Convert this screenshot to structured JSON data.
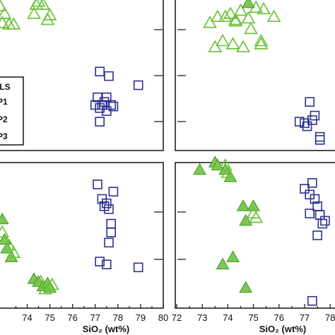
{
  "colors": {
    "triangle_hollow": "#6cc33a",
    "triangle_fill": "#7dc855",
    "square": "#2e3192",
    "axis": "#222222"
  },
  "legend": {
    "title": "OLS",
    "entries": [
      "P1",
      "P2",
      "P3"
    ]
  },
  "chart_data": [
    {
      "type": "scatter",
      "panel": "top-left",
      "xlim": [
        72.8,
        80
      ],
      "series": [
        {
          "marker": "hollow-triangle",
          "x": [
            72.8,
            72.9,
            73.0,
            73.2,
            73.4,
            74.3,
            74.4,
            74.5,
            74.7,
            74.9,
            75.0
          ],
          "y": [
            0.95,
            0.84,
            0.9,
            0.83,
            0.83,
            0.9,
            0.96,
            0.98,
            0.96,
            0.86,
            0.89
          ]
        },
        {
          "marker": "hollow-square",
          "x": [
            77.2,
            77.1,
            77.0,
            77.2,
            77.5,
            77.4,
            77.6,
            77.7,
            77.8,
            77.3,
            77.2,
            77.5,
            78.9
          ],
          "y": [
            0.52,
            0.35,
            0.3,
            0.28,
            0.35,
            0.32,
            0.49,
            0.3,
            0.29,
            0.3,
            0.19,
            0.26,
            0.43
          ]
        }
      ],
      "yticks": 3
    },
    {
      "type": "scatter",
      "panel": "top-right",
      "xlim": [
        72,
        78.3
      ],
      "series": [
        {
          "marker": "hollow-triangle",
          "x": [
            73.3,
            73.5,
            73.6,
            73.9,
            74.2,
            74.3,
            74.1,
            74.5,
            74.8,
            74.9,
            73.8,
            74.3,
            74.6,
            75.3,
            75.1,
            75.8,
            75.4,
            75.3
          ],
          "y": [
            0.84,
            0.68,
            0.88,
            0.88,
            0.7,
            0.86,
            0.9,
            0.92,
            0.87,
            0.8,
            0.72,
            0.85,
            0.68,
            0.72,
            0.94,
            0.88,
            0.93,
            0.7
          ]
        },
        {
          "marker": "filled-triangle",
          "x": [
            74.8
          ],
          "y": [
            0.97
          ]
        },
        {
          "marker": "hollow-square",
          "x": [
            77.2,
            77.0,
            76.8,
            77.1,
            77.3,
            77.4,
            77.6,
            77.6
          ],
          "y": [
            0.32,
            0.18,
            0.19,
            0.16,
            0.2,
            0.23,
            0.07,
            0.09
          ]
        }
      ],
      "yticks": 3
    },
    {
      "type": "scatter",
      "panel": "bottom-left",
      "xlim": [
        72.8,
        80
      ],
      "xticks": [
        "74",
        "75",
        "76",
        "77",
        "78",
        "79",
        "80"
      ],
      "xlabel": "SiO₂ (wt%)",
      "series": [
        {
          "marker": "filled-triangle",
          "x": [
            72.9,
            73.0,
            73.1,
            73.3,
            74.3,
            74.5,
            74.7,
            74.9,
            75.0
          ],
          "y": [
            0.61,
            0.47,
            0.41,
            0.35,
            0.2,
            0.18,
            0.15,
            0.17,
            0.14
          ]
        },
        {
          "marker": "hollow-triangle",
          "x": [
            72.9,
            73.2,
            73.4,
            74.6,
            74.8,
            75.1
          ],
          "y": [
            0.52,
            0.43,
            0.38,
            0.18,
            0.13,
            0.16
          ]
        },
        {
          "marker": "hollow-square",
          "x": [
            77.1,
            77.3,
            77.4,
            77.6,
            77.7,
            77.7,
            77.8,
            77.2,
            77.5,
            78.9,
            77.6,
            77.5
          ],
          "y": [
            0.85,
            0.75,
            0.7,
            0.68,
            0.58,
            0.52,
            0.8,
            0.32,
            0.3,
            0.28,
            0.45,
            0.72
          ]
        }
      ],
      "yticks": 3
    },
    {
      "type": "scatter",
      "panel": "bottom-right",
      "xlim": [
        72,
        78.3
      ],
      "xticks": [
        "72",
        "73",
        "74",
        "75",
        "76",
        "77",
        "78"
      ],
      "xlabel": "SiO₂ (wt%)",
      "series": [
        {
          "marker": "filled-triangle",
          "x": [
            72.9,
            73.5,
            73.6,
            73.9,
            74.1,
            74.2,
            74.6,
            74.7,
            75.0
          ],
          "y": [
            0.95,
            1.0,
            0.98,
            0.95,
            0.9,
            0.35,
            0.7,
            0.6,
            0.7
          ]
        },
        {
          "marker": "hollow-triangle",
          "x": [
            73.9,
            74.0,
            75.0,
            75.1
          ],
          "y": [
            0.98,
            0.93,
            0.65,
            0.62
          ]
        },
        {
          "marker": "filled-triangle",
          "x": [
            73.8,
            74.7
          ],
          "y": [
            0.3,
            0.14
          ]
        },
        {
          "marker": "hollow-square",
          "x": [
            77.0,
            77.2,
            77.3,
            77.4,
            77.5,
            77.6,
            77.7,
            77.2,
            77.5,
            77.3,
            77.6,
            77.8
          ],
          "y": [
            0.82,
            0.78,
            0.86,
            0.75,
            0.7,
            0.64,
            0.58,
            0.65,
            0.5,
            0.05,
            0.64,
            0.6
          ]
        }
      ],
      "yticks": 3
    }
  ]
}
